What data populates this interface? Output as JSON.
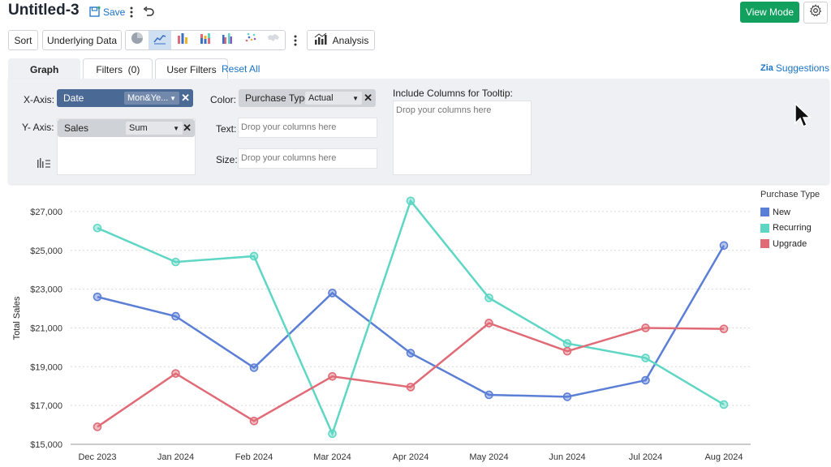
{
  "header": {
    "title": "Untitled-3",
    "save_label": "Save",
    "view_mode_label": "View Mode"
  },
  "toolbar": {
    "sort_label": "Sort",
    "underlying_data_label": "Underlying Data",
    "analysis_label": "Analysis",
    "chart_types": [
      "pie-chart-icon",
      "line-chart-icon",
      "bar-chart-icon",
      "stacked-bar-chart-icon",
      "grouped-bar-chart-icon",
      "scatter-chart-icon",
      "map-chart-icon"
    ]
  },
  "tabs": [
    {
      "label": "Graph"
    },
    {
      "label": "Filters  (0)"
    },
    {
      "label": "User Filters"
    }
  ],
  "reset_all_label": "Reset All",
  "suggestions_label": "Suggestions",
  "panel": {
    "x_axis": {
      "label": "X-Axis:",
      "field": "Date",
      "function": "Mon&Ye..."
    },
    "y_axis": {
      "label": "Y- Axis:",
      "field": "Sales",
      "function": "Sum"
    },
    "color": {
      "label": "Color:",
      "field": "Purchase Type",
      "function": "Actual"
    },
    "text": {
      "label": "Text:",
      "placeholder": "Drop your columns here"
    },
    "size": {
      "label": "Size:",
      "placeholder": "Drop your columns here"
    },
    "tooltip": {
      "label": "Include Columns for Tooltip:",
      "placeholder": "Drop your columns here"
    }
  },
  "chart_data": {
    "type": "line",
    "categories": [
      "Dec 2023",
      "Jan 2024",
      "Feb 2024",
      "Mar 2024",
      "Apr 2024",
      "May 2024",
      "Jun 2024",
      "Jul 2024",
      "Aug 2024"
    ],
    "series": [
      {
        "name": "New",
        "color": "#5b7fd6",
        "values": [
          22600,
          21600,
          18950,
          22800,
          19700,
          17550,
          17450,
          18300,
          25250
        ]
      },
      {
        "name": "Recurring",
        "color": "#5ed6c4",
        "values": [
          26150,
          24400,
          24700,
          15550,
          27550,
          22550,
          20200,
          19450,
          17050
        ]
      },
      {
        "name": "Upgrade",
        "color": "#e06b76",
        "values": [
          15900,
          18650,
          16200,
          18500,
          17950,
          21250,
          19800,
          21000,
          20950
        ]
      }
    ],
    "ylabel": "Total Sales",
    "ylim": [
      15000,
      28000
    ],
    "yticks": [
      "$15,000",
      "$17,000",
      "$19,000",
      "$21,000",
      "$23,000",
      "$25,000",
      "$27,000"
    ],
    "ytick_values": [
      15000,
      17000,
      19000,
      21000,
      23000,
      25000,
      27000
    ],
    "legend_title": "Purchase Type",
    "legend_position": "top-right",
    "grid": true
  }
}
